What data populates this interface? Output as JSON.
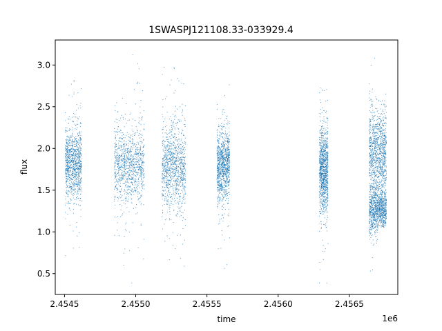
{
  "chart_data": {
    "type": "scatter",
    "title": "1SWASPJ121108.33-033929.4",
    "xlabel": "time",
    "ylabel": "flux",
    "x_offset_label": "1e6",
    "xlim": [
      2454435,
      2456840
    ],
    "ylim": [
      0.25,
      3.3
    ],
    "grid": false,
    "legend": "none",
    "marker_color": "#1f77b4",
    "x_ticks": [
      2454500,
      2455000,
      2455500,
      2456000,
      2456500
    ],
    "x_tick_labels": [
      "2.4545",
      "2.4550",
      "2.4555",
      "2.4560",
      "2.4565"
    ],
    "y_ticks": [
      0.5,
      1.0,
      1.5,
      2.0,
      2.5,
      3.0
    ],
    "y_tick_labels": [
      "0.5",
      "1.0",
      "1.5",
      "2.0",
      "2.5",
      "3.0"
    ],
    "clusters": [
      {
        "x_start": 2454505,
        "x_end": 2454620,
        "y_center": 1.82,
        "y_spread": 0.2,
        "y_min": 0.45,
        "y_max": 2.95
      },
      {
        "x_start": 2454850,
        "x_end": 2455060,
        "y_center": 1.8,
        "y_spread": 0.22,
        "y_min": 0.38,
        "y_max": 3.13
      },
      {
        "x_start": 2455185,
        "x_end": 2455350,
        "y_center": 1.78,
        "y_spread": 0.24,
        "y_min": 0.4,
        "y_max": 3.2
      },
      {
        "x_start": 2455570,
        "x_end": 2455660,
        "y_center": 1.8,
        "y_spread": 0.2,
        "y_min": 0.42,
        "y_max": 2.85
      },
      {
        "x_start": 2456290,
        "x_end": 2456350,
        "y_center": 1.75,
        "y_spread": 0.25,
        "y_min": 0.38,
        "y_max": 2.75
      },
      {
        "x_start": 2456640,
        "x_end": 2456700,
        "y_center": 1.95,
        "y_spread": 0.25,
        "y_min": 0.37,
        "y_max": 3.15,
        "low_center": 1.25,
        "low_spread": 0.15
      },
      {
        "x_start": 2456700,
        "x_end": 2456760,
        "y_center": 1.95,
        "y_spread": 0.25,
        "y_min": 1.05,
        "y_max": 2.72,
        "low_center": 1.25,
        "low_spread": 0.12
      }
    ]
  }
}
